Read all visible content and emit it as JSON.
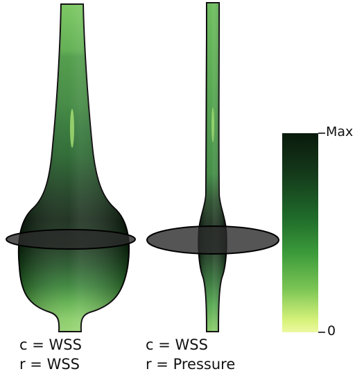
{
  "left_model": {
    "color_label": "c = WSS",
    "radius_label": "r = WSS"
  },
  "right_model": {
    "color_label": "c = WSS",
    "radius_label": "r = Pressure"
  },
  "colorbar": {
    "max_label": "Max",
    "min_label": "0",
    "colors": [
      "#0a1a0c",
      "#14391a",
      "#1f6a2a",
      "#3b9a3a",
      "#7ac454",
      "#d6f27a",
      "#ecf9a0"
    ]
  },
  "colors": {
    "plane": "#2b2b2b",
    "outline": "#000000"
  }
}
